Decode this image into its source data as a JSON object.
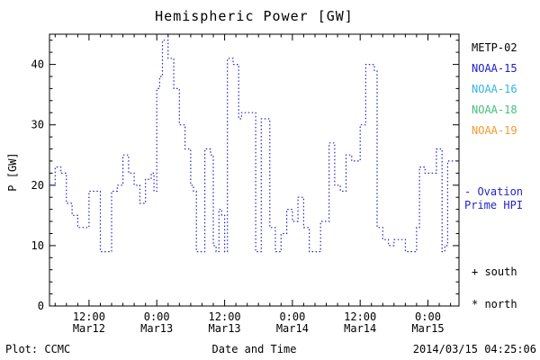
{
  "title": "Hemispheric Power [GW]",
  "ylabel": "P [GW]",
  "xlabel": "Date and Time",
  "footer": {
    "credit": "Plot: CCMC",
    "timestamp": "2014/03/15 04:25:06"
  },
  "legend": {
    "satellites": [
      {
        "label": "METP-02",
        "color": "#000000"
      },
      {
        "label": "NOAA-15",
        "color": "#1c1ccd"
      },
      {
        "label": "NOAA-16",
        "color": "#35b4e3"
      },
      {
        "label": "NOAA-18",
        "color": "#46bd7c"
      },
      {
        "label": "NOAA-19",
        "color": "#f59a2e"
      }
    ],
    "ovation": {
      "line1": "- Ovation",
      "line2": "Prime HPI",
      "color": "#2323c8"
    },
    "south": "+ south",
    "north": "* north"
  },
  "chart_data": {
    "type": "line",
    "style": "dotted-step",
    "title": "Hemispheric Power [GW]",
    "xlabel": "Date and Time",
    "ylabel": "P [GW]",
    "series_name": "Ovation Prime HPI",
    "line_color": "#2323c8",
    "grid": false,
    "ylim": [
      0,
      45
    ],
    "y_ticks": [
      0,
      10,
      20,
      30,
      40
    ],
    "y_minor_step": 2,
    "xlim_hours": [
      5,
      77.5
    ],
    "x_minor_step": 2,
    "x_ticks": [
      {
        "hour": 12,
        "time": "12:00",
        "date": "Mar12"
      },
      {
        "hour": 24,
        "time": "0:00",
        "date": "Mar13"
      },
      {
        "hour": 36,
        "time": "12:00",
        "date": "Mar13"
      },
      {
        "hour": 48,
        "time": "0:00",
        "date": "Mar14"
      },
      {
        "hour": 60,
        "time": "12:00",
        "date": "Mar14"
      },
      {
        "hour": 72,
        "time": "0:00",
        "date": "Mar15"
      }
    ],
    "x_hours": [
      5,
      6,
      7,
      8,
      9,
      10,
      12,
      14,
      16,
      17,
      18,
      19,
      20,
      21,
      22,
      23,
      23.5,
      24,
      24.5,
      25,
      26,
      27,
      28,
      29,
      30,
      30.5,
      31,
      32.5,
      33.5,
      34,
      34.5,
      35,
      35.5,
      36,
      36.5,
      37.5,
      38.5,
      39,
      41.5,
      42.5,
      44,
      45,
      46,
      47,
      48,
      49,
      50,
      51,
      53,
      54.5,
      55.5,
      56.5,
      57.5,
      58.5,
      60,
      61,
      62.5,
      63,
      64,
      65,
      66,
      68,
      70,
      70.5,
      71.5,
      73.5,
      74.5,
      75,
      75.5
    ],
    "y_gw": [
      20,
      23,
      22,
      17,
      15,
      13,
      19,
      9,
      19,
      20,
      25,
      22,
      20,
      17,
      21,
      22,
      19,
      36,
      38,
      44,
      41,
      36,
      30,
      26,
      20,
      19,
      9,
      26,
      25,
      10,
      9,
      16,
      15,
      9,
      41,
      40,
      31,
      32,
      9,
      31,
      13,
      9,
      12,
      16,
      14,
      18,
      13,
      9,
      14,
      27,
      20,
      19,
      25,
      24,
      30,
      40,
      39,
      13,
      11,
      10,
      11,
      9,
      13,
      23,
      22,
      26,
      9,
      10,
      24
    ]
  }
}
